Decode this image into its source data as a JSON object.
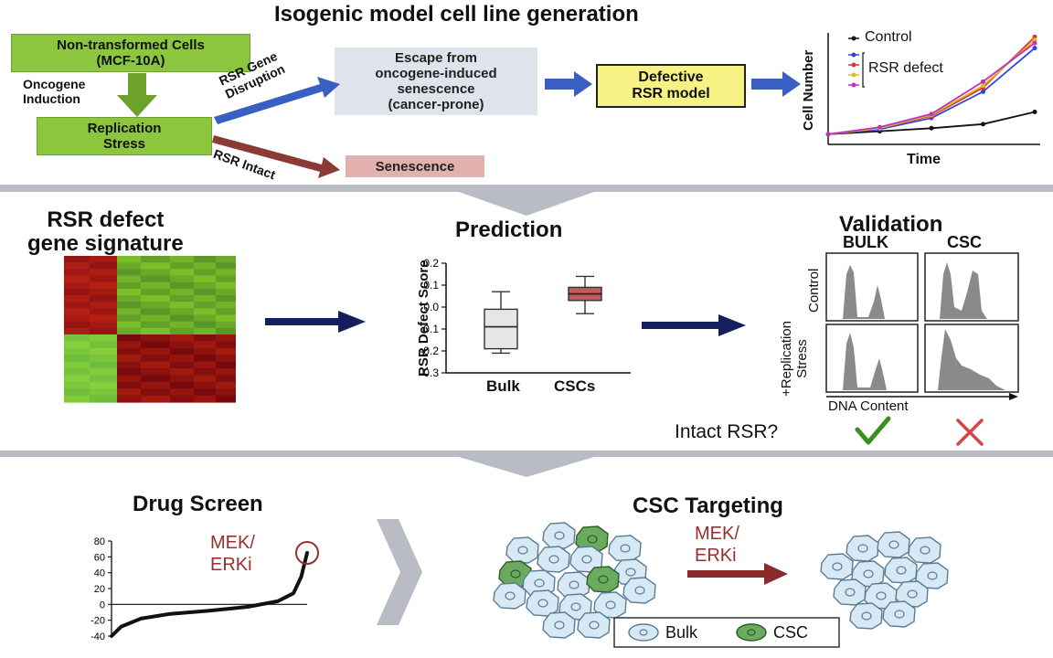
{
  "section1": {
    "title": "Isogenic model cell line generation",
    "box_nontransformed": "Non-transformed Cells\n(MCF-10A)",
    "label_oncogene": "Oncogene\nInduction",
    "box_replication_stress": "Replication\nStress",
    "label_rsr_disruption": "RSR Gene\nDisruption",
    "label_rsr_intact": "RSR Intact",
    "box_escape": "Escape from\noncogene-induced\nsenescence\n(cancer-prone)",
    "box_senescence": "Senescence",
    "box_defective": "Defective\nRSR model",
    "growth_chart": {
      "legend_control": "Control",
      "legend_rsr_defect": "RSR defect",
      "ylabel": "Cell Number",
      "xlabel": "Time"
    }
  },
  "section2": {
    "signature_title": "RSR defect\ngene signature",
    "prediction_title": "Prediction",
    "validation_title": "Validation",
    "col_bulk": "BULK",
    "col_csc": "CSC",
    "row_control": "Control",
    "row_stress": "+Replication\nStress",
    "dna_label": "DNA Content",
    "intact_label": "Intact RSR?"
  },
  "section3": {
    "drug_title": "Drug Screen",
    "drug_hit": "MEK/\nERKi",
    "target_title": "CSC Targeting",
    "target_drug": "MEK/\nERKi",
    "legend_bulk": "Bulk",
    "legend_csc": "CSC"
  },
  "colors": {
    "green_box": "#8cc63f",
    "gray_box": "#dfe3ec",
    "yellow_box": "#f6f284",
    "pink_box": "#e2b1ad",
    "blue_arrow": "#3a5fc4",
    "red_arrow": "#7a2a2a",
    "navy_arrow": "#14205e",
    "heatmap_red": "#b01e1e",
    "heatmap_green": "#7cc243"
  },
  "chart_data": [
    {
      "type": "line",
      "ylabel": "Cell Number",
      "xlabel": "Time",
      "x": [
        0,
        1,
        2,
        3,
        4
      ],
      "series": [
        {
          "name": "Control",
          "values": [
            1,
            1.3,
            1.6,
            2,
            3.2
          ],
          "color": "#111111"
        },
        {
          "name": "RSR defect",
          "values": [
            1,
            1.5,
            2.6,
            5.2,
            9.5
          ],
          "color": "#2b48d8"
        },
        {
          "values": [
            1,
            1.6,
            2.8,
            5.6,
            10.6
          ],
          "color": "#e03030"
        },
        {
          "values": [
            1,
            1.6,
            2.9,
            5.8,
            10.3
          ],
          "color": "#d8c020"
        },
        {
          "values": [
            1,
            1.7,
            3.0,
            6.2,
            10.0
          ],
          "color": "#c030c0"
        }
      ]
    },
    {
      "type": "box",
      "ylabel": "RSR Defect Score",
      "categories": [
        "Bulk",
        "CSCs"
      ],
      "ylim": [
        -0.3,
        0.2
      ],
      "yticks": [
        0.2,
        0.1,
        0.0,
        -0.1,
        -0.2,
        -0.3
      ],
      "boxes": [
        {
          "name": "Bulk",
          "whisker_low": -0.21,
          "q1": -0.19,
          "median": -0.09,
          "q3": -0.01,
          "whisker_high": 0.07,
          "color": "#e6e6e6"
        },
        {
          "name": "CSCs",
          "whisker_low": -0.03,
          "q1": 0.03,
          "median": 0.06,
          "q3": 0.09,
          "whisker_high": 0.14,
          "color": "#c55a5a"
        }
      ]
    },
    {
      "type": "line",
      "yticks": [
        80,
        60,
        40,
        20,
        0,
        -20,
        -40
      ],
      "ylim": [
        -40,
        80
      ],
      "x": [
        0,
        5,
        15,
        30,
        50,
        70,
        85,
        93,
        97,
        100
      ],
      "y": [
        -40,
        -28,
        -18,
        -12,
        -8,
        -3,
        4,
        14,
        35,
        65
      ]
    }
  ]
}
